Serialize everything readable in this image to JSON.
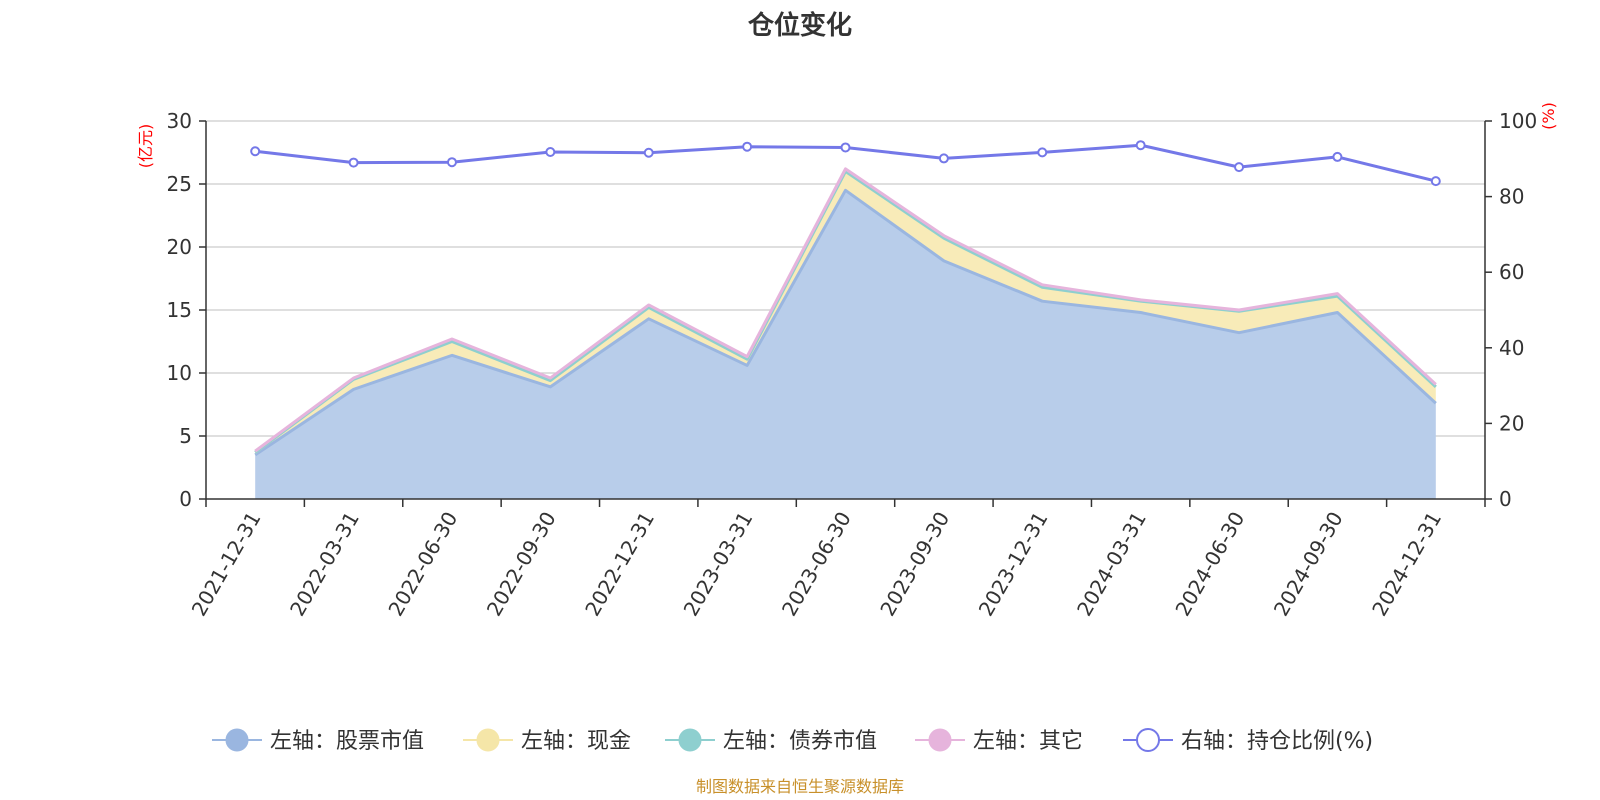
{
  "chart_data": {
    "type": "area",
    "title": "仓位变化",
    "categories": [
      "2021-12-31",
      "2022-03-31",
      "2022-06-30",
      "2022-09-30",
      "2022-12-31",
      "2023-03-31",
      "2023-06-30",
      "2023-09-30",
      "2023-12-31",
      "2024-03-31",
      "2024-06-30",
      "2024-09-30",
      "2024-12-31"
    ],
    "left_axis": {
      "unit": "(亿元)",
      "min": 0,
      "max": 30,
      "ticks": [
        "0",
        "5",
        "10",
        "15",
        "20",
        "25",
        "30"
      ]
    },
    "right_axis": {
      "unit": "(%)",
      "min": 0,
      "max": 100,
      "ticks": [
        "0",
        "20",
        "40",
        "60",
        "80",
        "100"
      ]
    },
    "grid": true,
    "stacked": true,
    "series": [
      {
        "name": "左轴：股票市值",
        "axis": "left",
        "kind": "area",
        "color": "#9ab6e0",
        "fill": "#b8cdea",
        "values": [
          3.5,
          8.7,
          11.4,
          8.9,
          14.3,
          10.6,
          24.5,
          18.9,
          15.7,
          14.8,
          13.2,
          14.8,
          7.6
        ]
      },
      {
        "name": "左轴：现金",
        "axis": "left",
        "kind": "area",
        "color": "#f5e6a8",
        "fill": "#f8ebb8",
        "values": [
          0.2,
          0.8,
          1.1,
          0.5,
          0.9,
          0.5,
          1.5,
          1.8,
          1.1,
          0.9,
          1.7,
          1.3,
          1.3
        ]
      },
      {
        "name": "左轴：债券市值",
        "axis": "left",
        "kind": "area",
        "color": "#8ecfcf",
        "fill": "#a8dcdc",
        "values": [
          0,
          0,
          0,
          0,
          0,
          0,
          0,
          0,
          0,
          0,
          0,
          0,
          0
        ]
      },
      {
        "name": "左轴：其它",
        "axis": "left",
        "kind": "area",
        "color": "#e6b4dc",
        "fill": "#eec8e6",
        "values": [
          0.1,
          0.1,
          0.2,
          0.2,
          0.2,
          0.2,
          0.2,
          0.2,
          0.2,
          0.1,
          0.1,
          0.2,
          0.2
        ]
      },
      {
        "name": "右轴：持仓比例(%)",
        "axis": "right",
        "kind": "line",
        "color": "#7478e8",
        "values": [
          92.0,
          89.0,
          89.1,
          91.8,
          91.6,
          93.2,
          93.0,
          90.1,
          91.7,
          93.6,
          87.8,
          90.5,
          84.1
        ]
      }
    ],
    "legend_position": "bottom",
    "source": "制图数据来自恒生聚源数据库"
  }
}
